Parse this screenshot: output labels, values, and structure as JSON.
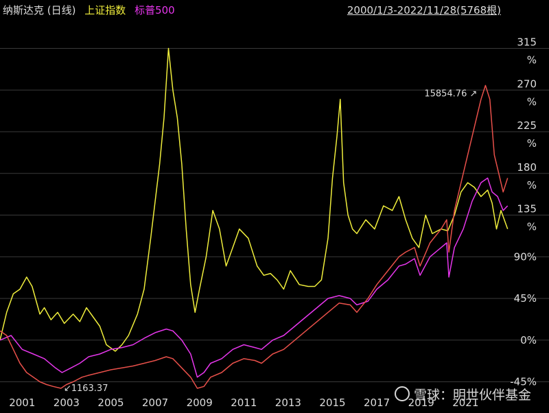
{
  "legend": {
    "nasdaq": "纳斯达克 (日线)",
    "shanghai": "上证指数",
    "sp500": "标普500"
  },
  "date_range": "2000/1/3-2022/11/28(5768根)",
  "watermark": "雪球：明世伙伴基金",
  "colors": {
    "background": "#000000",
    "nasdaq": "#e8504a",
    "shanghai": "#f0ee3c",
    "sp500": "#e636ec",
    "text": "#dddddd",
    "grid": "#3a3a3a"
  },
  "chart_data": {
    "type": "line",
    "x_ticks": [
      "2001",
      "2003",
      "2005",
      "2007",
      "2009",
      "2011",
      "2013",
      "2015",
      "2017",
      "2019",
      "2021"
    ],
    "y_ticks": [
      {
        "value": 315,
        "label": "315",
        "unit": "%"
      },
      {
        "value": 270,
        "label": "270",
        "unit": "%"
      },
      {
        "value": 225,
        "label": "225",
        "unit": "%"
      },
      {
        "value": 180,
        "label": "180",
        "unit": "%"
      },
      {
        "value": 135,
        "label": "135",
        "unit": "%"
      },
      {
        "value": 90,
        "label": "90%",
        "unit": ""
      },
      {
        "value": 45,
        "label": "45%",
        "unit": ""
      },
      {
        "value": 0,
        "label": "0%",
        "unit": ""
      },
      {
        "value": -45,
        "label": "-45%",
        "unit": ""
      }
    ],
    "ylim": [
      -55,
      345
    ],
    "xlim": [
      2000.0,
      2022.91
    ],
    "grid": true,
    "annotations": [
      {
        "text": "15854.76",
        "x": 2021.9,
        "y": 275,
        "series": "nasdaq"
      },
      {
        "text": "1163.37",
        "x": 2002.75,
        "y": -52,
        "series": "nasdaq"
      }
    ],
    "series": [
      {
        "name": "上证指数",
        "color_key": "shanghai",
        "x": [
          2000.0,
          2000.3,
          2000.6,
          2000.9,
          2001.2,
          2001.45,
          2001.6,
          2001.8,
          2002.0,
          2002.3,
          2002.6,
          2002.9,
          2003.3,
          2003.6,
          2003.9,
          2004.2,
          2004.5,
          2004.8,
          2005.2,
          2005.5,
          2005.8,
          2006.2,
          2006.5,
          2006.8,
          2007.0,
          2007.2,
          2007.4,
          2007.6,
          2007.8,
          2008.0,
          2008.2,
          2008.4,
          2008.6,
          2008.8,
          2009.0,
          2009.3,
          2009.6,
          2009.9,
          2010.2,
          2010.5,
          2010.8,
          2011.2,
          2011.6,
          2011.9,
          2012.2,
          2012.5,
          2012.8,
          2013.1,
          2013.5,
          2013.9,
          2014.2,
          2014.5,
          2014.8,
          2015.0,
          2015.2,
          2015.35,
          2015.5,
          2015.7,
          2015.9,
          2016.1,
          2016.5,
          2016.9,
          2017.3,
          2017.7,
          2018.0,
          2018.3,
          2018.6,
          2018.9,
          2019.2,
          2019.5,
          2019.9,
          2020.2,
          2020.5,
          2020.8,
          2021.1,
          2021.4,
          2021.7,
          2022.0,
          2022.2,
          2022.4,
          2022.6,
          2022.9
        ],
        "y": [
          0,
          30,
          50,
          55,
          68,
          58,
          45,
          28,
          35,
          22,
          30,
          18,
          28,
          20,
          35,
          25,
          15,
          -5,
          -12,
          -5,
          5,
          28,
          55,
          110,
          150,
          190,
          240,
          315,
          270,
          240,
          190,
          120,
          60,
          30,
          55,
          90,
          140,
          120,
          80,
          100,
          120,
          110,
          80,
          70,
          72,
          65,
          55,
          75,
          60,
          58,
          58,
          65,
          110,
          175,
          220,
          260,
          170,
          135,
          120,
          115,
          130,
          120,
          145,
          140,
          155,
          130,
          110,
          100,
          135,
          115,
          120,
          118,
          135,
          160,
          170,
          165,
          155,
          162,
          148,
          120,
          140,
          120
        ]
      },
      {
        "name": "标普500",
        "color_key": "sp500",
        "x": [
          2000.0,
          2000.5,
          2001.0,
          2001.5,
          2002.0,
          2002.5,
          2002.8,
          2003.2,
          2003.6,
          2004.0,
          2004.5,
          2005.0,
          2005.5,
          2006.0,
          2006.5,
          2007.0,
          2007.5,
          2007.8,
          2008.2,
          2008.6,
          2008.9,
          2009.2,
          2009.5,
          2010.0,
          2010.5,
          2011.0,
          2011.5,
          2011.8,
          2012.3,
          2012.8,
          2013.3,
          2013.8,
          2014.3,
          2014.8,
          2015.3,
          2015.8,
          2016.1,
          2016.6,
          2017.0,
          2017.5,
          2018.0,
          2018.3,
          2018.7,
          2018.95,
          2019.4,
          2019.9,
          2020.15,
          2020.25,
          2020.5,
          2020.9,
          2021.3,
          2021.7,
          2022.0,
          2022.2,
          2022.45,
          2022.7,
          2022.9
        ],
        "y": [
          0,
          5,
          -10,
          -15,
          -20,
          -30,
          -35,
          -30,
          -25,
          -18,
          -15,
          -10,
          -8,
          -5,
          2,
          8,
          12,
          10,
          0,
          -15,
          -40,
          -35,
          -25,
          -20,
          -10,
          -5,
          -8,
          -10,
          0,
          5,
          15,
          25,
          35,
          45,
          48,
          45,
          38,
          42,
          55,
          65,
          80,
          82,
          88,
          70,
          90,
          100,
          105,
          68,
          100,
          120,
          150,
          170,
          175,
          160,
          155,
          140,
          145
        ]
      },
      {
        "name": "纳斯达克",
        "color_key": "nasdaq",
        "x": [
          2000.0,
          2000.3,
          2000.6,
          2000.9,
          2001.2,
          2001.5,
          2001.8,
          2002.1,
          2002.4,
          2002.75,
          2003.0,
          2003.3,
          2003.7,
          2004.0,
          2004.5,
          2005.0,
          2005.5,
          2006.0,
          2006.5,
          2007.0,
          2007.5,
          2007.8,
          2008.2,
          2008.6,
          2008.9,
          2009.2,
          2009.5,
          2010.0,
          2010.5,
          2011.0,
          2011.5,
          2011.8,
          2012.3,
          2012.8,
          2013.3,
          2013.8,
          2014.3,
          2014.8,
          2015.3,
          2015.8,
          2016.1,
          2016.6,
          2017.0,
          2017.5,
          2018.0,
          2018.3,
          2018.7,
          2018.95,
          2019.4,
          2019.9,
          2020.15,
          2020.25,
          2020.5,
          2020.9,
          2021.3,
          2021.7,
          2021.9,
          2022.1,
          2022.3,
          2022.5,
          2022.7,
          2022.9
        ],
        "y": [
          10,
          5,
          -10,
          -25,
          -35,
          -40,
          -45,
          -48,
          -50,
          -52,
          -48,
          -45,
          -40,
          -38,
          -35,
          -32,
          -30,
          -28,
          -25,
          -22,
          -18,
          -20,
          -30,
          -40,
          -52,
          -50,
          -40,
          -35,
          -25,
          -20,
          -22,
          -25,
          -15,
          -10,
          0,
          10,
          20,
          30,
          40,
          38,
          30,
          45,
          60,
          75,
          90,
          95,
          100,
          80,
          105,
          120,
          130,
          95,
          140,
          180,
          220,
          260,
          275,
          260,
          200,
          180,
          160,
          175
        ]
      }
    ]
  }
}
